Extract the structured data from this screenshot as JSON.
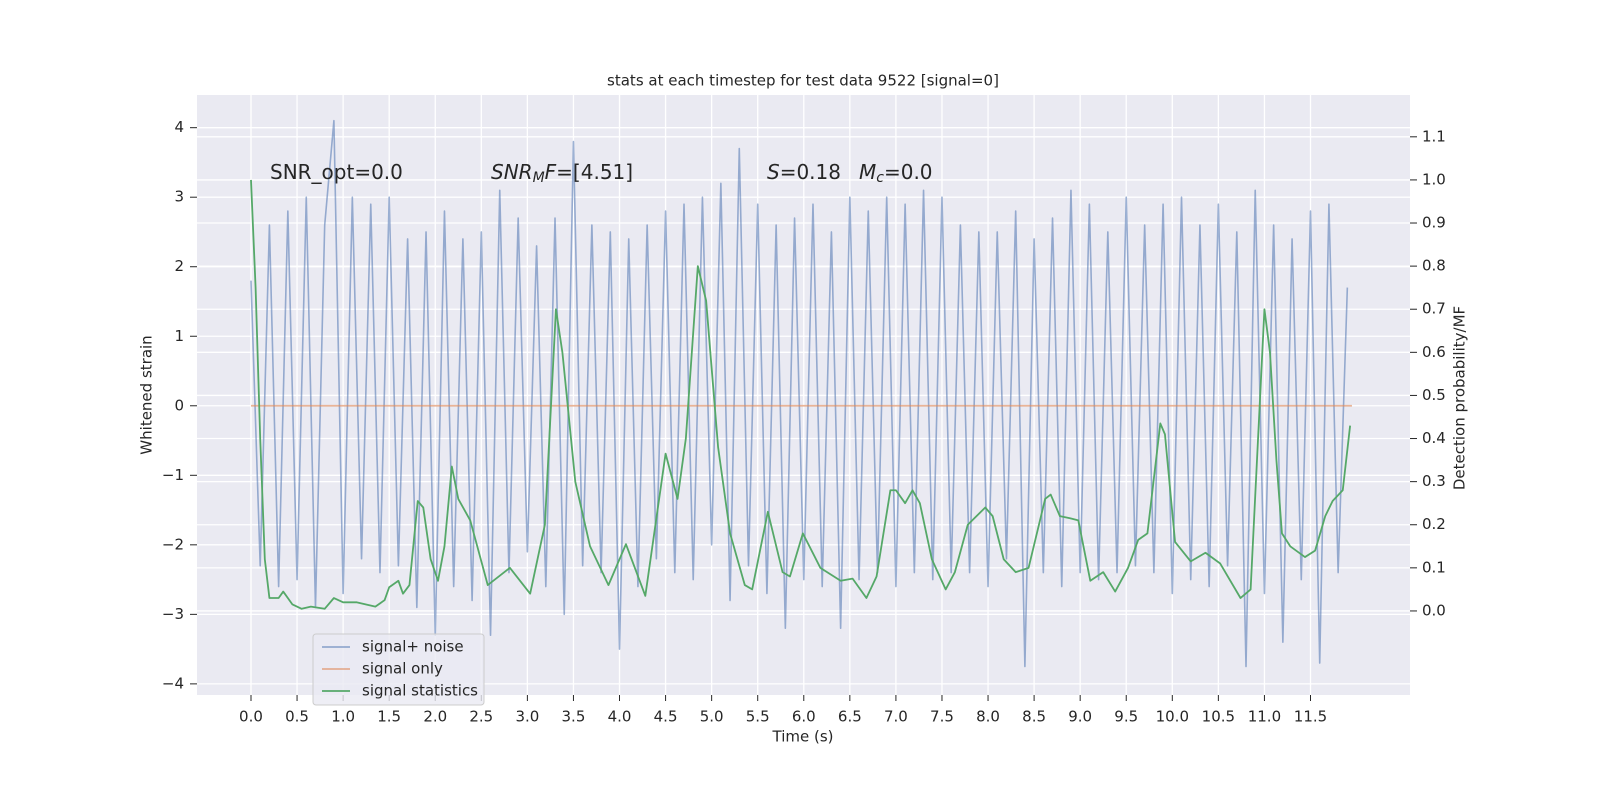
{
  "chart_data": {
    "type": "line",
    "title": "stats at each timestep for test data 9522 [signal=0]",
    "xlabel": "Time (s)",
    "ylabel": "Whitened strain",
    "y2label": "Detection probability/MF",
    "xlim": [
      -0.586,
      12.58
    ],
    "ylim": [
      -4.16,
      4.47
    ],
    "y2lim": [
      -0.195,
      1.197
    ],
    "xticks": [
      {
        "value": 0,
        "label": "0.0"
      },
      0.5,
      {
        "value": 1,
        "label": "1.0"
      },
      1.5,
      {
        "value": 2,
        "label": "2.0"
      },
      2.5,
      {
        "value": 3,
        "label": "3.0"
      },
      3.5,
      {
        "value": 4,
        "label": "4.0"
      },
      4.5,
      {
        "value": 5,
        "label": "5.0"
      },
      5.5,
      {
        "value": 6,
        "label": "6.0"
      },
      6.5,
      {
        "value": 7,
        "label": "7.0"
      },
      7.5,
      {
        "value": 8,
        "label": "8.0"
      },
      8.5,
      {
        "value": 9,
        "label": "9.0"
      },
      9.5,
      {
        "value": 10,
        "label": "10.0"
      },
      10.5,
      {
        "value": 11,
        "label": "11.0"
      },
      11.5
    ],
    "yticks": [
      {
        "value": -4,
        "label": "−4"
      },
      {
        "value": -3,
        "label": "−3"
      },
      {
        "value": -2,
        "label": "−2"
      },
      {
        "value": -1,
        "label": "−1"
      },
      0,
      1,
      2,
      3,
      4
    ],
    "y2ticks": [
      {
        "value": 0,
        "label": "0.0"
      },
      0.1,
      0.2,
      0.3,
      0.4,
      0.5,
      0.6,
      0.7,
      0.8,
      0.9,
      {
        "value": 1,
        "label": "1.0"
      },
      1.1
    ],
    "grid": true,
    "legend_position": "lower left",
    "annotations": [
      [
        {
          "text": "SNR_opt=0.0"
        }
      ],
      [
        {
          "text": "SNR",
          "italic": true
        },
        {
          "text": "M",
          "italic": true,
          "sub": true
        },
        {
          "text": "F",
          "italic": true
        },
        {
          "text": "=[4.51]"
        }
      ],
      [
        {
          "text": "S",
          "italic": true
        },
        {
          "text": "=0.18"
        }
      ],
      [
        {
          "text": "M",
          "italic": true
        },
        {
          "text": "c",
          "italic": true,
          "sub": true
        },
        {
          "text": "=0.0"
        }
      ]
    ],
    "series": [
      {
        "name": "signal+ noise",
        "color": "#4c72b0",
        "opacity": 0.55,
        "x": [
          0.0,
          0.1,
          0.2,
          0.3,
          0.4,
          0.5,
          0.6,
          0.7,
          0.8,
          0.9,
          1.0,
          1.1,
          1.2,
          1.3,
          1.4,
          1.5,
          1.6,
          1.7,
          1.8,
          1.9,
          2.0,
          2.1,
          2.2,
          2.3,
          2.4,
          2.5,
          2.6,
          2.7,
          2.8,
          2.9,
          3.0,
          3.1,
          3.2,
          3.3,
          3.4,
          3.5,
          3.6,
          3.7,
          3.8,
          3.9,
          4.0,
          4.1,
          4.2,
          4.3,
          4.4,
          4.5,
          4.6,
          4.7,
          4.8,
          4.9,
          5.0,
          5.1,
          5.2,
          5.3,
          5.4,
          5.5,
          5.6,
          5.7,
          5.8,
          5.9,
          6.0,
          6.1,
          6.2,
          6.3,
          6.4,
          6.5,
          6.6,
          6.7,
          6.8,
          6.9,
          7.0,
          7.1,
          7.2,
          7.3,
          7.4,
          7.5,
          7.6,
          7.7,
          7.8,
          7.9,
          8.0,
          8.1,
          8.2,
          8.3,
          8.4,
          8.5,
          8.6,
          8.7,
          8.8,
          8.9,
          9.0,
          9.1,
          9.2,
          9.3,
          9.4,
          9.5,
          9.6,
          9.7,
          9.8,
          9.9,
          10.0,
          10.1,
          10.2,
          10.3,
          10.4,
          10.5,
          10.6,
          10.7,
          10.8,
          10.9,
          11.0,
          11.1,
          11.2,
          11.3,
          11.4,
          11.5,
          11.6,
          11.7,
          11.8,
          11.9
        ],
        "values": [
          1.8,
          -2.3,
          2.6,
          -2.6,
          2.8,
          -2.5,
          3.0,
          -2.9,
          2.6,
          4.1,
          -2.7,
          3.0,
          -2.2,
          2.9,
          -2.4,
          3.0,
          -2.3,
          2.4,
          -2.9,
          2.5,
          -3.3,
          2.8,
          -2.6,
          2.4,
          -2.8,
          2.5,
          -3.3,
          3.1,
          -2.4,
          2.7,
          -2.1,
          2.3,
          -2.6,
          2.7,
          -3.0,
          3.8,
          -2.3,
          2.6,
          -2.4,
          2.5,
          -3.5,
          2.4,
          -2.6,
          2.6,
          -2.2,
          2.8,
          -2.4,
          2.9,
          -2.5,
          3.0,
          -2.0,
          3.2,
          -2.8,
          3.7,
          -2.3,
          2.9,
          -2.7,
          2.6,
          -3.2,
          2.7,
          -2.5,
          2.9,
          -2.6,
          2.5,
          -3.2,
          3.0,
          -2.5,
          2.8,
          -2.4,
          3.0,
          -2.6,
          2.9,
          -2.4,
          3.1,
          -2.5,
          3.0,
          -2.4,
          2.6,
          -2.4,
          2.5,
          -2.6,
          2.5,
          -2.2,
          2.8,
          -3.75,
          2.4,
          -2.4,
          2.7,
          -2.6,
          3.1,
          -2.4,
          2.9,
          -2.5,
          2.5,
          -2.4,
          3.0,
          -2.3,
          2.6,
          -2.4,
          2.9,
          -2.7,
          3.0,
          -2.5,
          2.6,
          -2.6,
          2.9,
          -2.3,
          2.5,
          -3.75,
          3.1,
          -2.7,
          2.6,
          -3.4,
          2.4,
          -2.5,
          2.8,
          -3.7,
          2.9,
          -2.4,
          1.7
        ]
      },
      {
        "name": "signal only",
        "color": "#dd8452",
        "opacity": 0.6,
        "x": [
          0.0,
          11.95
        ],
        "values": [
          0,
          0
        ]
      },
      {
        "name": "signal statistics",
        "color": "#55a868",
        "opacity": 1,
        "axis": "y2",
        "x": [
          0,
          0.05,
          0.1,
          0.15,
          0.2,
          0.3,
          0.35,
          0.45,
          0.55,
          0.65,
          0.8,
          0.9,
          1.0,
          1.15,
          1.35,
          1.45,
          1.5,
          1.6,
          1.65,
          1.72,
          1.81,
          1.87,
          1.95,
          2.03,
          2.1,
          2.18,
          2.25,
          2.38,
          2.57,
          2.81,
          3.03,
          3.19,
          3.31,
          3.38,
          3.52,
          3.68,
          3.88,
          4.07,
          4.28,
          4.5,
          4.63,
          4.72,
          4.85,
          4.94,
          5.07,
          5.2,
          5.36,
          5.44,
          5.61,
          5.77,
          5.85,
          5.99,
          6.18,
          6.4,
          6.53,
          6.68,
          6.79,
          6.94,
          7.0,
          7.1,
          7.18,
          7.26,
          7.39,
          7.54,
          7.64,
          7.78,
          7.97,
          8.05,
          8.17,
          8.3,
          8.44,
          8.62,
          8.68,
          8.78,
          8.89,
          8.98,
          9.11,
          9.25,
          9.38,
          9.52,
          9.63,
          9.73,
          9.87,
          9.92,
          10.03,
          10.2,
          10.36,
          10.52,
          10.74,
          10.85,
          11.0,
          11.06,
          11.13,
          11.19,
          11.28,
          11.44,
          11.55,
          11.66,
          11.74,
          11.85,
          11.93
        ],
        "values": [
          1.0,
          0.75,
          0.4,
          0.12,
          0.03,
          0.03,
          0.045,
          0.015,
          0.005,
          0.01,
          0.005,
          0.03,
          0.02,
          0.02,
          0.01,
          0.025,
          0.055,
          0.07,
          0.04,
          0.06,
          0.255,
          0.24,
          0.12,
          0.07,
          0.15,
          0.335,
          0.26,
          0.21,
          0.06,
          0.1,
          0.04,
          0.2,
          0.7,
          0.6,
          0.3,
          0.15,
          0.06,
          0.155,
          0.035,
          0.365,
          0.26,
          0.4,
          0.8,
          0.72,
          0.38,
          0.18,
          0.06,
          0.05,
          0.23,
          0.09,
          0.08,
          0.18,
          0.1,
          0.07,
          0.075,
          0.03,
          0.08,
          0.28,
          0.28,
          0.25,
          0.28,
          0.25,
          0.12,
          0.05,
          0.09,
          0.2,
          0.24,
          0.22,
          0.12,
          0.09,
          0.1,
          0.26,
          0.27,
          0.22,
          0.215,
          0.21,
          0.07,
          0.09,
          0.045,
          0.1,
          0.165,
          0.18,
          0.435,
          0.41,
          0.16,
          0.115,
          0.135,
          0.11,
          0.03,
          0.05,
          0.7,
          0.6,
          0.35,
          0.18,
          0.15,
          0.125,
          0.14,
          0.22,
          0.255,
          0.28,
          0.43
        ]
      }
    ]
  }
}
